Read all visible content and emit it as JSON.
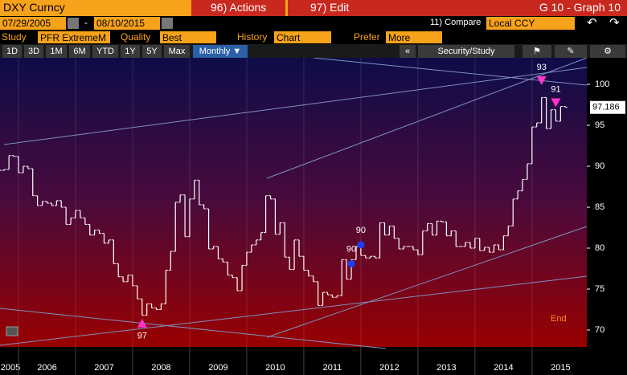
{
  "toolbar": {
    "ticker": "DXY Curncy",
    "actions": "96) Actions",
    "edit": "97) Edit",
    "graph": "G 10 - Graph 10",
    "start_date": "07/29/2005",
    "end_date": "08/10/2015",
    "compare": "11) Compare",
    "currency": "Local CCY",
    "study_label": "Study",
    "study": "PFR ExtremeM",
    "quality_label": "Quality",
    "quality": "Best",
    "history_label": "History",
    "history": "Chart",
    "prefer_label": "Prefer",
    "prefer": "More",
    "ranges": [
      "1D",
      "3D",
      "1M",
      "6M",
      "YTD",
      "1Y",
      "5Y",
      "Max"
    ],
    "period": "Monthly ▼",
    "security_study": "Security/Study"
  },
  "chart_data": {
    "type": "price_bars",
    "color": "#ffffff",
    "x": [
      2005.667,
      2005.75,
      2005.833,
      2005.917,
      2006.0,
      2006.083,
      2006.167,
      2006.25,
      2006.333,
      2006.417,
      2006.5,
      2006.583,
      2006.667,
      2006.75,
      2006.833,
      2006.917,
      2007.0,
      2007.083,
      2007.167,
      2007.25,
      2007.333,
      2007.417,
      2007.5,
      2007.583,
      2007.667,
      2007.75,
      2007.833,
      2007.917,
      2008.0,
      2008.083,
      2008.167,
      2008.25,
      2008.333,
      2008.417,
      2008.5,
      2008.583,
      2008.667,
      2008.75,
      2008.833,
      2008.917,
      2009.0,
      2009.083,
      2009.167,
      2009.25,
      2009.333,
      2009.417,
      2009.5,
      2009.583,
      2009.667,
      2009.75,
      2009.833,
      2009.917,
      2010.0,
      2010.083,
      2010.167,
      2010.25,
      2010.333,
      2010.417,
      2010.5,
      2010.583,
      2010.667,
      2010.75,
      2010.833,
      2010.917,
      2011.0,
      2011.083,
      2011.167,
      2011.25,
      2011.333,
      2011.417,
      2011.5,
      2011.583,
      2011.667,
      2011.75,
      2011.833,
      2011.917,
      2012.0,
      2012.083,
      2012.167,
      2012.25,
      2012.333,
      2012.417,
      2012.5,
      2012.583,
      2012.667,
      2012.75,
      2012.833,
      2012.917,
      2013.0,
      2013.083,
      2013.167,
      2013.25,
      2013.333,
      2013.417,
      2013.5,
      2013.583,
      2013.667,
      2013.75,
      2013.833,
      2013.917,
      2014.0,
      2014.083,
      2014.167,
      2014.25,
      2014.333,
      2014.417,
      2014.5,
      2014.583,
      2014.667,
      2014.75,
      2014.833,
      2014.917,
      2015.0,
      2015.083,
      2015.167,
      2015.25,
      2015.333,
      2015.417,
      2015.5,
      2015.583
    ],
    "values": [
      89.5,
      89.6,
      91.3,
      91.2,
      89.2,
      90.0,
      89.7,
      86.4,
      85.2,
      85.7,
      85.5,
      85.2,
      85.8,
      85.0,
      82.9,
      83.7,
      84.6,
      83.7,
      82.9,
      81.6,
      82.2,
      81.8,
      80.6,
      81.0,
      78.1,
      76.5,
      75.9,
      76.7,
      75.4,
      73.8,
      71.8,
      73.2,
      72.7,
      72.5,
      73.2,
      77.3,
      79.6,
      85.6,
      86.5,
      81.4,
      86.0,
      88.3,
      85.3,
      84.8,
      79.9,
      80.2,
      78.7,
      78.3,
      76.7,
      76.4,
      74.8,
      77.9,
      79.5,
      80.4,
      81.0,
      81.9,
      86.4,
      86.0,
      81.7,
      83.1,
      78.9,
      77.4,
      81.0,
      79.0,
      77.3,
      76.6,
      75.9,
      73.0,
      74.6,
      74.3,
      74.0,
      74.2,
      78.6,
      76.2,
      78.6,
      80.2,
      79.1,
      78.8,
      79.0,
      78.8,
      83.1,
      81.6,
      82.7,
      81.2,
      79.9,
      80.2,
      80.2,
      79.8,
      79.2,
      82.1,
      83.0,
      81.6,
      83.3,
      83.2,
      81.5,
      82.1,
      80.2,
      80.2,
      80.7,
      80.0,
      81.2,
      79.7,
      80.1,
      79.5,
      80.4,
      79.8,
      81.5,
      82.7,
      86.0,
      87.0,
      88.4,
      90.3,
      94.8,
      95.3,
      98.4,
      94.6,
      96.9,
      95.5,
      97.3,
      97.2
    ],
    "xlim": [
      2005.676,
      2015.96
    ],
    "ylim": [
      67.94,
      103.24
    ],
    "xticks": [
      2005,
      2006,
      2007,
      2008,
      2009,
      2010,
      2011,
      2012,
      2013,
      2014,
      2015
    ],
    "yticks": [
      70,
      75,
      80,
      85,
      90,
      95,
      100
    ],
    "last_price": 97.186,
    "annotations": [
      {
        "label": "93",
        "x": 2015.167,
        "value": 100.5,
        "shape": "triangle-down",
        "color": "#ff33cc"
      },
      {
        "label": "91",
        "x": 2015.417,
        "value": 97.8,
        "shape": "triangle-down",
        "color": "#ff33cc"
      },
      {
        "label": "97",
        "x": 2008.167,
        "value": 70.8,
        "shape": "triangle-up",
        "color": "#ff33cc"
      },
      {
        "label": "90",
        "x": 2011.833,
        "value": 78.1,
        "shape": "circle",
        "color": "#1f3cff"
      },
      {
        "label": "90",
        "x": 2012.0,
        "value": 80.4,
        "shape": "circle",
        "color": "#1f3cff"
      }
    ],
    "end_label": "End"
  }
}
